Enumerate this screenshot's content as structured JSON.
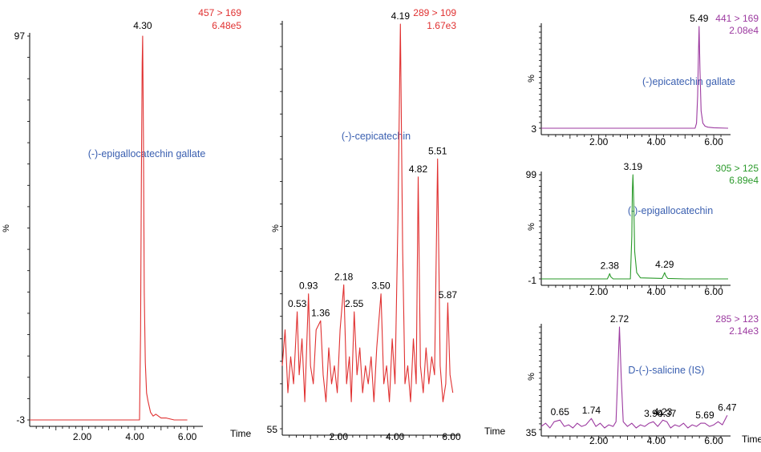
{
  "chart_data": [
    {
      "type": "line",
      "compound": "(-)-epigallocatechin gallate",
      "mrm": "457 > 169",
      "intensity": "6.48e5",
      "color": "#e03030",
      "label_color": "#3a5fb0",
      "xlabel": "Time",
      "ylabel": "%",
      "y_min_label": "-3",
      "y_max_label": "97",
      "xlim": [
        0,
        6.5
      ],
      "ylim": [
        -3,
        97
      ],
      "xticks": [
        "2.00",
        "4.00",
        "6.00"
      ],
      "peak_labels": [
        {
          "x": 4.3,
          "text": "4.30"
        }
      ],
      "baseline": -3,
      "x": [
        0.0,
        4.18,
        4.22,
        4.25,
        4.28,
        4.3,
        4.33,
        4.36,
        4.4,
        4.45,
        4.5,
        4.6,
        4.7,
        4.8,
        5.0,
        5.2,
        5.5,
        5.8,
        6.0
      ],
      "y": [
        -3,
        -3,
        20,
        60,
        90,
        97,
        70,
        30,
        12,
        4,
        2,
        -1,
        -2,
        -1.5,
        -2.5,
        -2.5,
        -3,
        -3,
        -3
      ]
    },
    {
      "type": "line",
      "compound": "(-)-cepicatechin",
      "mrm": "289 > 109",
      "intensity": "1.67e3",
      "color": "#e03030",
      "label_color": "#3a5fb0",
      "xlabel": "Time",
      "ylabel": "%",
      "y_min_label": "55",
      "xlim": [
        0,
        6.2
      ],
      "ylim": [
        55,
        100
      ],
      "xticks": [
        "2.00",
        "4.00",
        "6.00"
      ],
      "peak_labels": [
        {
          "x": 0.53,
          "text": "0.53"
        },
        {
          "x": 0.93,
          "text": "0.93"
        },
        {
          "x": 1.36,
          "text": "1.36"
        },
        {
          "x": 2.18,
          "text": "2.18"
        },
        {
          "x": 2.55,
          "text": "2.55"
        },
        {
          "x": 3.5,
          "text": "3.50"
        },
        {
          "x": 4.19,
          "text": "4.19"
        },
        {
          "x": 4.82,
          "text": "4.82"
        },
        {
          "x": 5.51,
          "text": "5.51"
        },
        {
          "x": 5.87,
          "text": "5.87"
        }
      ],
      "x": [
        0.0,
        0.1,
        0.2,
        0.3,
        0.4,
        0.53,
        0.6,
        0.7,
        0.8,
        0.93,
        1.0,
        1.1,
        1.2,
        1.36,
        1.45,
        1.55,
        1.65,
        1.75,
        1.85,
        1.95,
        2.05,
        2.18,
        2.28,
        2.38,
        2.45,
        2.55,
        2.65,
        2.75,
        2.85,
        2.95,
        3.05,
        3.15,
        3.25,
        3.35,
        3.5,
        3.6,
        3.7,
        3.8,
        3.9,
        4.0,
        4.1,
        4.19,
        4.27,
        4.35,
        4.45,
        4.55,
        4.65,
        4.75,
        4.82,
        4.9,
        5.0,
        5.1,
        5.2,
        5.3,
        5.4,
        5.51,
        5.6,
        5.7,
        5.8,
        5.87,
        5.95,
        6.05
      ],
      "y": [
        62,
        66,
        59,
        63,
        60,
        68,
        61,
        65,
        58,
        70,
        62,
        60,
        66,
        67,
        61,
        58,
        64,
        60,
        62,
        59,
        66,
        71,
        60,
        63,
        58,
        68,
        61,
        64,
        59,
        62,
        60,
        63,
        58,
        64,
        70,
        60,
        62,
        58,
        65,
        60,
        78,
        100,
        75,
        60,
        62,
        58,
        65,
        60,
        83,
        62,
        59,
        64,
        60,
        63,
        61,
        85,
        62,
        58,
        60,
        69,
        61,
        59
      ]
    },
    {
      "type": "line",
      "compound": "(-)epicatechin gallate",
      "mrm": "441 > 169",
      "intensity": "2.08e4",
      "color": "#9c3aa0",
      "label_color": "#3a5fb0",
      "xlabel": "",
      "ylabel": "%",
      "y_min_label": "3",
      "xlim": [
        0,
        6.5
      ],
      "ylim": [
        3,
        103
      ],
      "xticks": [
        "2.00",
        "4.00",
        "6.00"
      ],
      "peak_labels": [
        {
          "x": 5.49,
          "text": "5.49"
        }
      ],
      "x": [
        0.0,
        5.35,
        5.4,
        5.44,
        5.47,
        5.49,
        5.52,
        5.56,
        5.62,
        5.7,
        5.8,
        6.0,
        6.5
      ],
      "y": [
        3,
        3,
        8,
        35,
        80,
        103,
        60,
        20,
        8,
        5,
        4,
        3.5,
        3
      ]
    },
    {
      "type": "line",
      "compound": "(-)-epigallocatechin",
      "mrm": "305 > 125",
      "intensity": "6.89e4",
      "color": "#2a9a2a",
      "label_color": "#3a5fb0",
      "xlabel": "",
      "ylabel": "%",
      "y_min_label": "-1",
      "y_max_label": "99",
      "xlim": [
        0,
        6.5
      ],
      "ylim": [
        -1,
        99
      ],
      "xticks": [
        "2.00",
        "4.00",
        "6.00"
      ],
      "peak_labels": [
        {
          "x": 2.38,
          "text": "2.38"
        },
        {
          "x": 3.19,
          "text": "3.19"
        },
        {
          "x": 4.29,
          "text": "4.29"
        }
      ],
      "x": [
        0.0,
        2.3,
        2.35,
        2.38,
        2.42,
        2.5,
        3.1,
        3.15,
        3.17,
        3.19,
        3.22,
        3.25,
        3.32,
        3.45,
        4.2,
        4.26,
        4.29,
        4.33,
        4.4,
        5.0,
        6.5
      ],
      "y": [
        -1,
        -1,
        2,
        4,
        1,
        -1,
        -1,
        40,
        85,
        99,
        70,
        25,
        5,
        0,
        -0.5,
        3,
        5,
        2,
        -0.5,
        -1,
        -1
      ]
    },
    {
      "type": "line",
      "compound": "D-(-)-salicine (IS)",
      "mrm": "285 > 123",
      "intensity": "2.14e3",
      "color": "#9c3aa0",
      "label_color": "#3a5fb0",
      "xlabel": "Time",
      "ylabel": "%",
      "y_min_label": "35",
      "xlim": [
        0,
        6.5
      ],
      "ylim": [
        35,
        100
      ],
      "xticks": [
        "2.00",
        "4.00",
        "6.00"
      ],
      "peak_labels": [
        {
          "x": 0.65,
          "text": "0.65"
        },
        {
          "x": 1.74,
          "text": "1.74"
        },
        {
          "x": 2.72,
          "text": "2.72"
        },
        {
          "x": 3.9,
          "text": "3.90"
        },
        {
          "x": 4.23,
          "text": "4.23"
        },
        {
          "x": 4.37,
          "text": "4.37"
        },
        {
          "x": 5.69,
          "text": "5.69"
        },
        {
          "x": 6.47,
          "text": "6.47"
        }
      ],
      "x": [
        0.0,
        0.15,
        0.3,
        0.45,
        0.65,
        0.8,
        0.95,
        1.1,
        1.25,
        1.4,
        1.55,
        1.74,
        1.9,
        2.05,
        2.2,
        2.35,
        2.5,
        2.6,
        2.66,
        2.72,
        2.78,
        2.85,
        3.0,
        3.15,
        3.3,
        3.45,
        3.6,
        3.75,
        3.9,
        4.05,
        4.23,
        4.37,
        4.5,
        4.65,
        4.8,
        4.95,
        5.1,
        5.25,
        5.4,
        5.55,
        5.69,
        5.85,
        6.0,
        6.15,
        6.3,
        6.47
      ],
      "y": [
        37,
        39,
        36,
        40,
        41,
        37,
        38,
        36,
        39,
        37,
        38,
        42,
        37,
        39,
        36,
        38,
        37,
        40,
        70,
        100,
        68,
        40,
        37,
        39,
        36,
        38,
        37,
        39,
        40,
        37,
        41,
        40,
        36,
        38,
        37,
        39,
        36,
        38,
        37,
        39,
        39,
        37,
        38,
        40,
        38,
        44
      ]
    }
  ]
}
